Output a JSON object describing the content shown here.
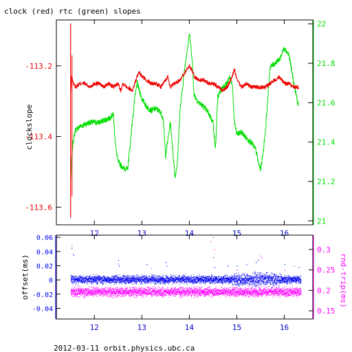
{
  "page": {
    "title": "clock (red) rtc (green) slopes",
    "footer": "2012-03-11 orbit.physics.ubc.ca"
  },
  "colors": {
    "clock": "#ee0000",
    "rtc": "#00dd00",
    "offset": "#0000ee",
    "rndtrip": "#ff00ff",
    "axis": "#000000"
  },
  "chart_data": [
    {
      "type": "line",
      "title": "clock (red) rtc (green) slopes",
      "ylabel": "clockslope",
      "xlim": [
        11.2,
        16.6
      ],
      "xticks": [
        "12",
        "13",
        "14",
        "15",
        "16"
      ],
      "ylim": [
        -113.65,
        -113.07
      ],
      "yticks": [
        "-113.2",
        "-113.4",
        "-113.6"
      ],
      "y2lim": [
        20.98,
        22.02
      ],
      "y2ticks": [
        "21",
        "21.2",
        "21.4",
        "21.6",
        "21.8",
        "22"
      ],
      "series": [
        {
          "role": "clock",
          "axis": "left",
          "x": [
            11.5,
            11.52,
            11.56,
            11.6,
            11.7,
            11.8,
            11.9,
            12.0,
            12.1,
            12.2,
            12.3,
            12.4,
            12.5,
            12.55,
            12.6,
            12.7,
            12.8,
            12.9,
            12.95,
            13.0,
            13.1,
            13.2,
            13.3,
            13.4,
            13.5,
            13.55,
            13.6,
            13.7,
            13.8,
            13.9,
            14.0,
            14.05,
            14.1,
            14.2,
            14.3,
            14.4,
            14.5,
            14.6,
            14.7,
            14.8,
            14.9,
            14.95,
            15.0,
            15.1,
            15.2,
            15.3,
            15.4,
            15.5,
            15.6,
            15.7,
            15.8,
            15.9,
            16.0,
            16.1,
            16.2,
            16.3
          ],
          "y": [
            -113.28,
            -113.23,
            -113.25,
            -113.26,
            -113.25,
            -113.25,
            -113.26,
            -113.25,
            -113.25,
            -113.26,
            -113.25,
            -113.26,
            -113.25,
            -113.27,
            -113.25,
            -113.26,
            -113.27,
            -113.23,
            -113.22,
            -113.23,
            -113.24,
            -113.25,
            -113.25,
            -113.26,
            -113.24,
            -113.23,
            -113.26,
            -113.25,
            -113.24,
            -113.22,
            -113.2,
            -113.21,
            -113.23,
            -113.24,
            -113.24,
            -113.25,
            -113.25,
            -113.26,
            -113.27,
            -113.26,
            -113.23,
            -113.21,
            -113.24,
            -113.26,
            -113.25,
            -113.26,
            -113.26,
            -113.26,
            -113.26,
            -113.25,
            -113.24,
            -113.23,
            -113.25,
            -113.25,
            -113.26,
            -113.26
          ]
        },
        {
          "role": "rtc",
          "axis": "right",
          "x": [
            11.5,
            11.52,
            11.55,
            11.6,
            11.7,
            11.8,
            11.9,
            12.0,
            12.1,
            12.2,
            12.3,
            12.4,
            12.45,
            12.5,
            12.6,
            12.7,
            12.8,
            12.85,
            12.9,
            13.0,
            13.1,
            13.2,
            13.3,
            13.4,
            13.45,
            13.5,
            13.6,
            13.7,
            13.75,
            13.8,
            13.9,
            14.0,
            14.05,
            14.1,
            14.2,
            14.3,
            14.4,
            14.5,
            14.55,
            14.6,
            14.7,
            14.8,
            14.85,
            14.9,
            14.95,
            15.0,
            15.1,
            15.2,
            15.3,
            15.4,
            15.45,
            15.5,
            15.55,
            15.6,
            15.7,
            15.8,
            15.9,
            16.0,
            16.1,
            16.2,
            16.3
          ],
          "y": [
            21.2,
            21.3,
            21.4,
            21.46,
            21.48,
            21.49,
            21.5,
            21.5,
            21.5,
            21.51,
            21.52,
            21.54,
            21.37,
            21.3,
            21.27,
            21.26,
            21.5,
            21.62,
            21.7,
            21.62,
            21.58,
            21.56,
            21.57,
            21.55,
            21.52,
            21.33,
            21.5,
            21.22,
            21.3,
            21.55,
            21.77,
            21.95,
            21.85,
            21.64,
            21.6,
            21.58,
            21.55,
            21.5,
            21.36,
            21.63,
            21.68,
            21.7,
            21.73,
            21.7,
            21.5,
            21.44,
            21.45,
            21.42,
            21.4,
            21.36,
            21.3,
            21.26,
            21.34,
            21.45,
            21.78,
            21.8,
            21.82,
            21.88,
            21.84,
            21.7,
            21.58
          ]
        }
      ]
    },
    {
      "type": "scatter",
      "ylabel": "offset(ms)",
      "y2label": "rnd-trip(ms)",
      "xlim": [
        11.2,
        16.6
      ],
      "xticks": [
        "12",
        "13",
        "14",
        "15",
        "16"
      ],
      "ylim": [
        -0.055,
        0.063
      ],
      "yticks": [
        "0.06",
        "0.04",
        "0.02",
        "0",
        "-0.02",
        "-0.04"
      ],
      "y2lim": [
        0.13,
        0.335
      ],
      "y2ticks": [
        "0.3",
        "0.25",
        "0.2",
        "0.15"
      ],
      "series": [
        {
          "role": "offset",
          "axis": "left",
          "band_center": 0.001,
          "band_width": 0.008,
          "x": [
            11.52,
            11.56,
            12.5,
            12.52,
            13.1,
            13.5,
            13.52,
            14.5,
            14.53,
            14.8,
            15.0,
            15.2,
            15.4,
            15.45,
            16.0,
            16.3
          ],
          "y": [
            0.045,
            0.035,
            0.028,
            0.02,
            0.022,
            0.025,
            0.02,
            0.032,
            0.018,
            0.02,
            0.02,
            0.022,
            0.025,
            0.028,
            0.022,
            0.018
          ]
        },
        {
          "role": "rndtrip",
          "axis": "right",
          "band_center": 0.197,
          "band_width": 0.016,
          "x": [
            11.52,
            11.55,
            12.5,
            13.2,
            14.45,
            14.5,
            14.52,
            15.0,
            15.5,
            15.52,
            16.0,
            16.2
          ],
          "y": [
            0.31,
            0.29,
            0.265,
            0.255,
            0.32,
            0.33,
            0.3,
            0.25,
            0.285,
            0.28,
            0.25,
            0.26
          ]
        }
      ]
    }
  ]
}
